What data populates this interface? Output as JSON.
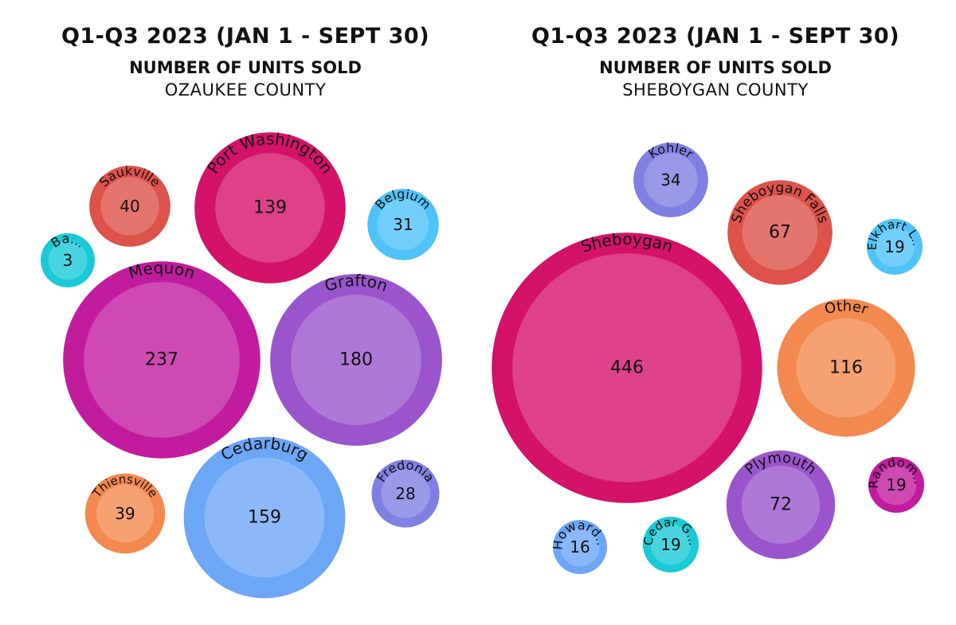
{
  "chart_data": [
    {
      "type": "packed-bubble",
      "title": "Q1-Q3 2023 (JAN 1 - SEPT 30)",
      "subtitle": "NUMBER OF UNITS SOLD",
      "county": "OZAUKEE COUNTY",
      "bubbles": [
        {
          "label": "Mequon",
          "value": 237,
          "value_text": "237",
          "color": "#c21c9e"
        },
        {
          "label": "Grafton",
          "value": 180,
          "value_text": "180",
          "color": "#9b55cc"
        },
        {
          "label": "Cedarburg",
          "value": 159,
          "value_text": "159",
          "color": "#6ea6f6"
        },
        {
          "label": "Port Washington",
          "value": 139,
          "value_text": "139",
          "color": "#d4126a"
        },
        {
          "label": "Saukville",
          "value": 40,
          "value_text": "40",
          "color": "#dd5249"
        },
        {
          "label": "Thiensville",
          "value": 39,
          "value_text": "39",
          "color": "#f3894f"
        },
        {
          "label": "Belgium",
          "value": 31,
          "value_text": "31",
          "color": "#4fc3f7"
        },
        {
          "label": "Fredonia",
          "value": 28,
          "value_text": "28",
          "color": "#7f80e2"
        },
        {
          "label": "Ba...",
          "value": 3,
          "value_text": "3",
          "color": "#1ac9d6"
        }
      ]
    },
    {
      "type": "packed-bubble",
      "title": "Q1-Q3 2023 (JAN 1 - SEPT 30)",
      "subtitle": "NUMBER OF UNITS SOLD",
      "county": "SHEBOYGAN COUNTY",
      "bubbles": [
        {
          "label": "Sheboygan",
          "value": 446,
          "value_text": "446",
          "color": "#d4126a"
        },
        {
          "label": "Other",
          "value": 116,
          "value_text": "116",
          "color": "#f3894f"
        },
        {
          "label": "Plymouth",
          "value": 72,
          "value_text": "72",
          "color": "#9b55cc"
        },
        {
          "label": "Sheboygan Falls",
          "value": 67,
          "value_text": "67",
          "color": "#dd5249"
        },
        {
          "label": "Kohler",
          "value": 34,
          "value_text": "34",
          "color": "#7f80e2"
        },
        {
          "label": "Elkhart L...",
          "value": 19,
          "value_text": "19",
          "color": "#4fc3f7"
        },
        {
          "label": "Random...",
          "value": 19,
          "value_text": "19",
          "color": "#c21c9e"
        },
        {
          "label": "Cedar G...",
          "value": 19,
          "value_text": "19",
          "color": "#1ac9d6"
        },
        {
          "label": "Howard...",
          "value": 16,
          "value_text": "16",
          "color": "#6ea6f6"
        }
      ]
    }
  ]
}
